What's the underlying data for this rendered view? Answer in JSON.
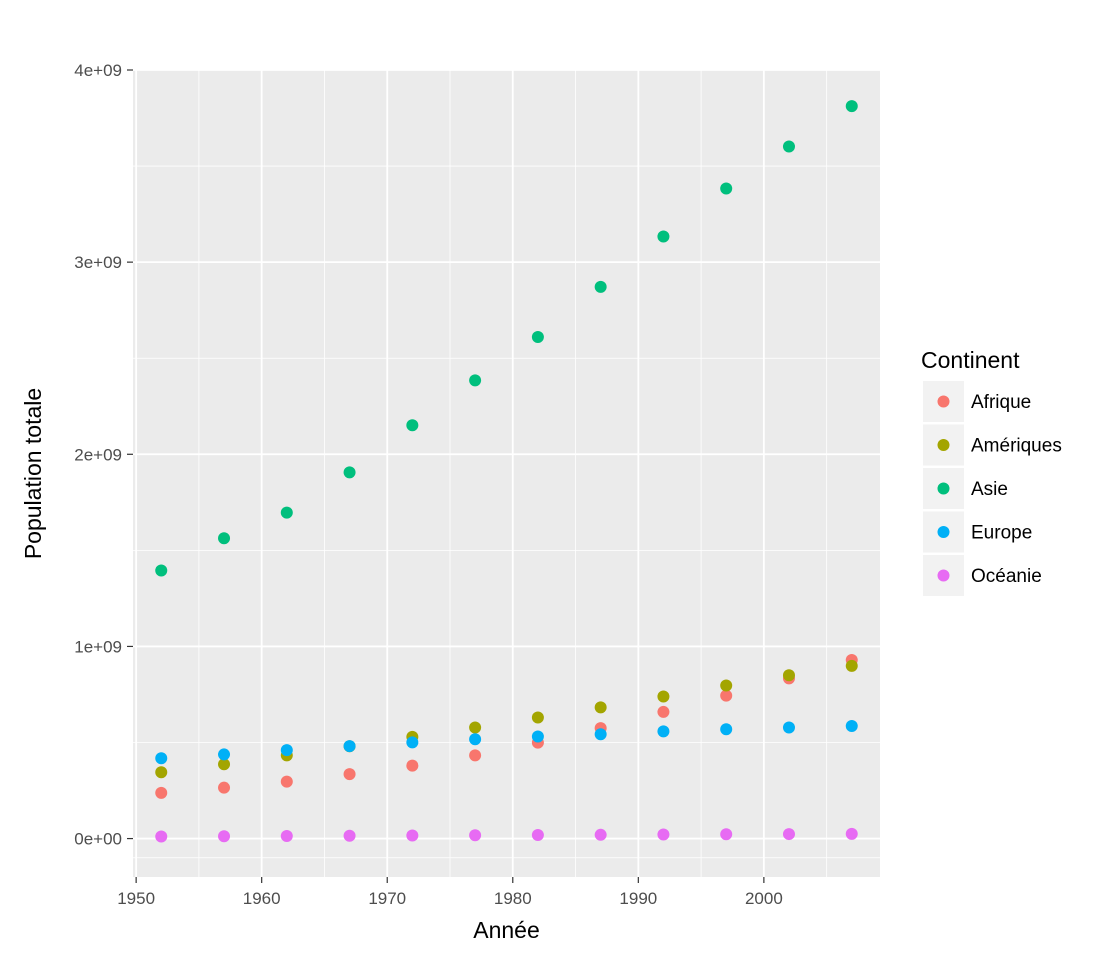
{
  "chart_data": {
    "type": "scatter",
    "title": "",
    "xlabel": "Année",
    "ylabel": "Population totale",
    "x": [
      1952,
      1957,
      1962,
      1967,
      1972,
      1977,
      1982,
      1987,
      1992,
      1997,
      2002,
      2007
    ],
    "xlim": [
      1949.75,
      2009.25
    ],
    "ylim": [
      -200000000,
      4000000000
    ],
    "x_ticks": [
      1950,
      1960,
      1970,
      1980,
      1990,
      2000
    ],
    "x_tick_labels": [
      "1950",
      "1960",
      "1970",
      "1980",
      "1990",
      "2000"
    ],
    "y_ticks": [
      0,
      1000000000,
      2000000000,
      3000000000,
      4000000000
    ],
    "y_tick_labels": [
      "0e+00",
      "1e+09",
      "2e+09",
      "3e+09",
      "4e+09"
    ],
    "grid": true,
    "legend_title": "Continent",
    "legend_position": "right",
    "series": [
      {
        "name": "Afrique",
        "color": "#F8766D",
        "values": [
          237640501,
          264837738,
          296516865,
          335289489,
          379879541,
          433061021,
          499348587,
          574834110,
          659081517,
          743832984,
          833723916,
          929539692
        ]
      },
      {
        "name": "Amériques",
        "color": "#A3A500",
        "values": [
          345152446,
          386953916,
          433270254,
          480746623,
          529384210,
          578067699,
          630290920,
          682753971,
          739274104,
          796900410,
          849772762,
          898871184
        ]
      },
      {
        "name": "Asie",
        "color": "#00BF7D",
        "values": [
          1395357352,
          1562780599,
          1696357182,
          1905662900,
          2150972248,
          2384513556,
          2610135582,
          2871220762,
          3133292191,
          3383285500,
          3601802203,
          3811953827
        ]
      },
      {
        "name": "Europe",
        "color": "#00B0F6",
        "values": [
          418120846,
          437890351,
          460355155,
          481178958,
          500635059,
          517164531,
          531266901,
          543094160,
          558142797,
          568944148,
          578223869,
          586098529
        ]
      },
      {
        "name": "Océanie",
        "color": "#E76BF3",
        "values": [
          10686006,
          11941976,
          13283518,
          14600414,
          16106100,
          17239000,
          18394850,
          19574415,
          20919651,
          22241430,
          23454829,
          24549947
        ]
      }
    ]
  }
}
